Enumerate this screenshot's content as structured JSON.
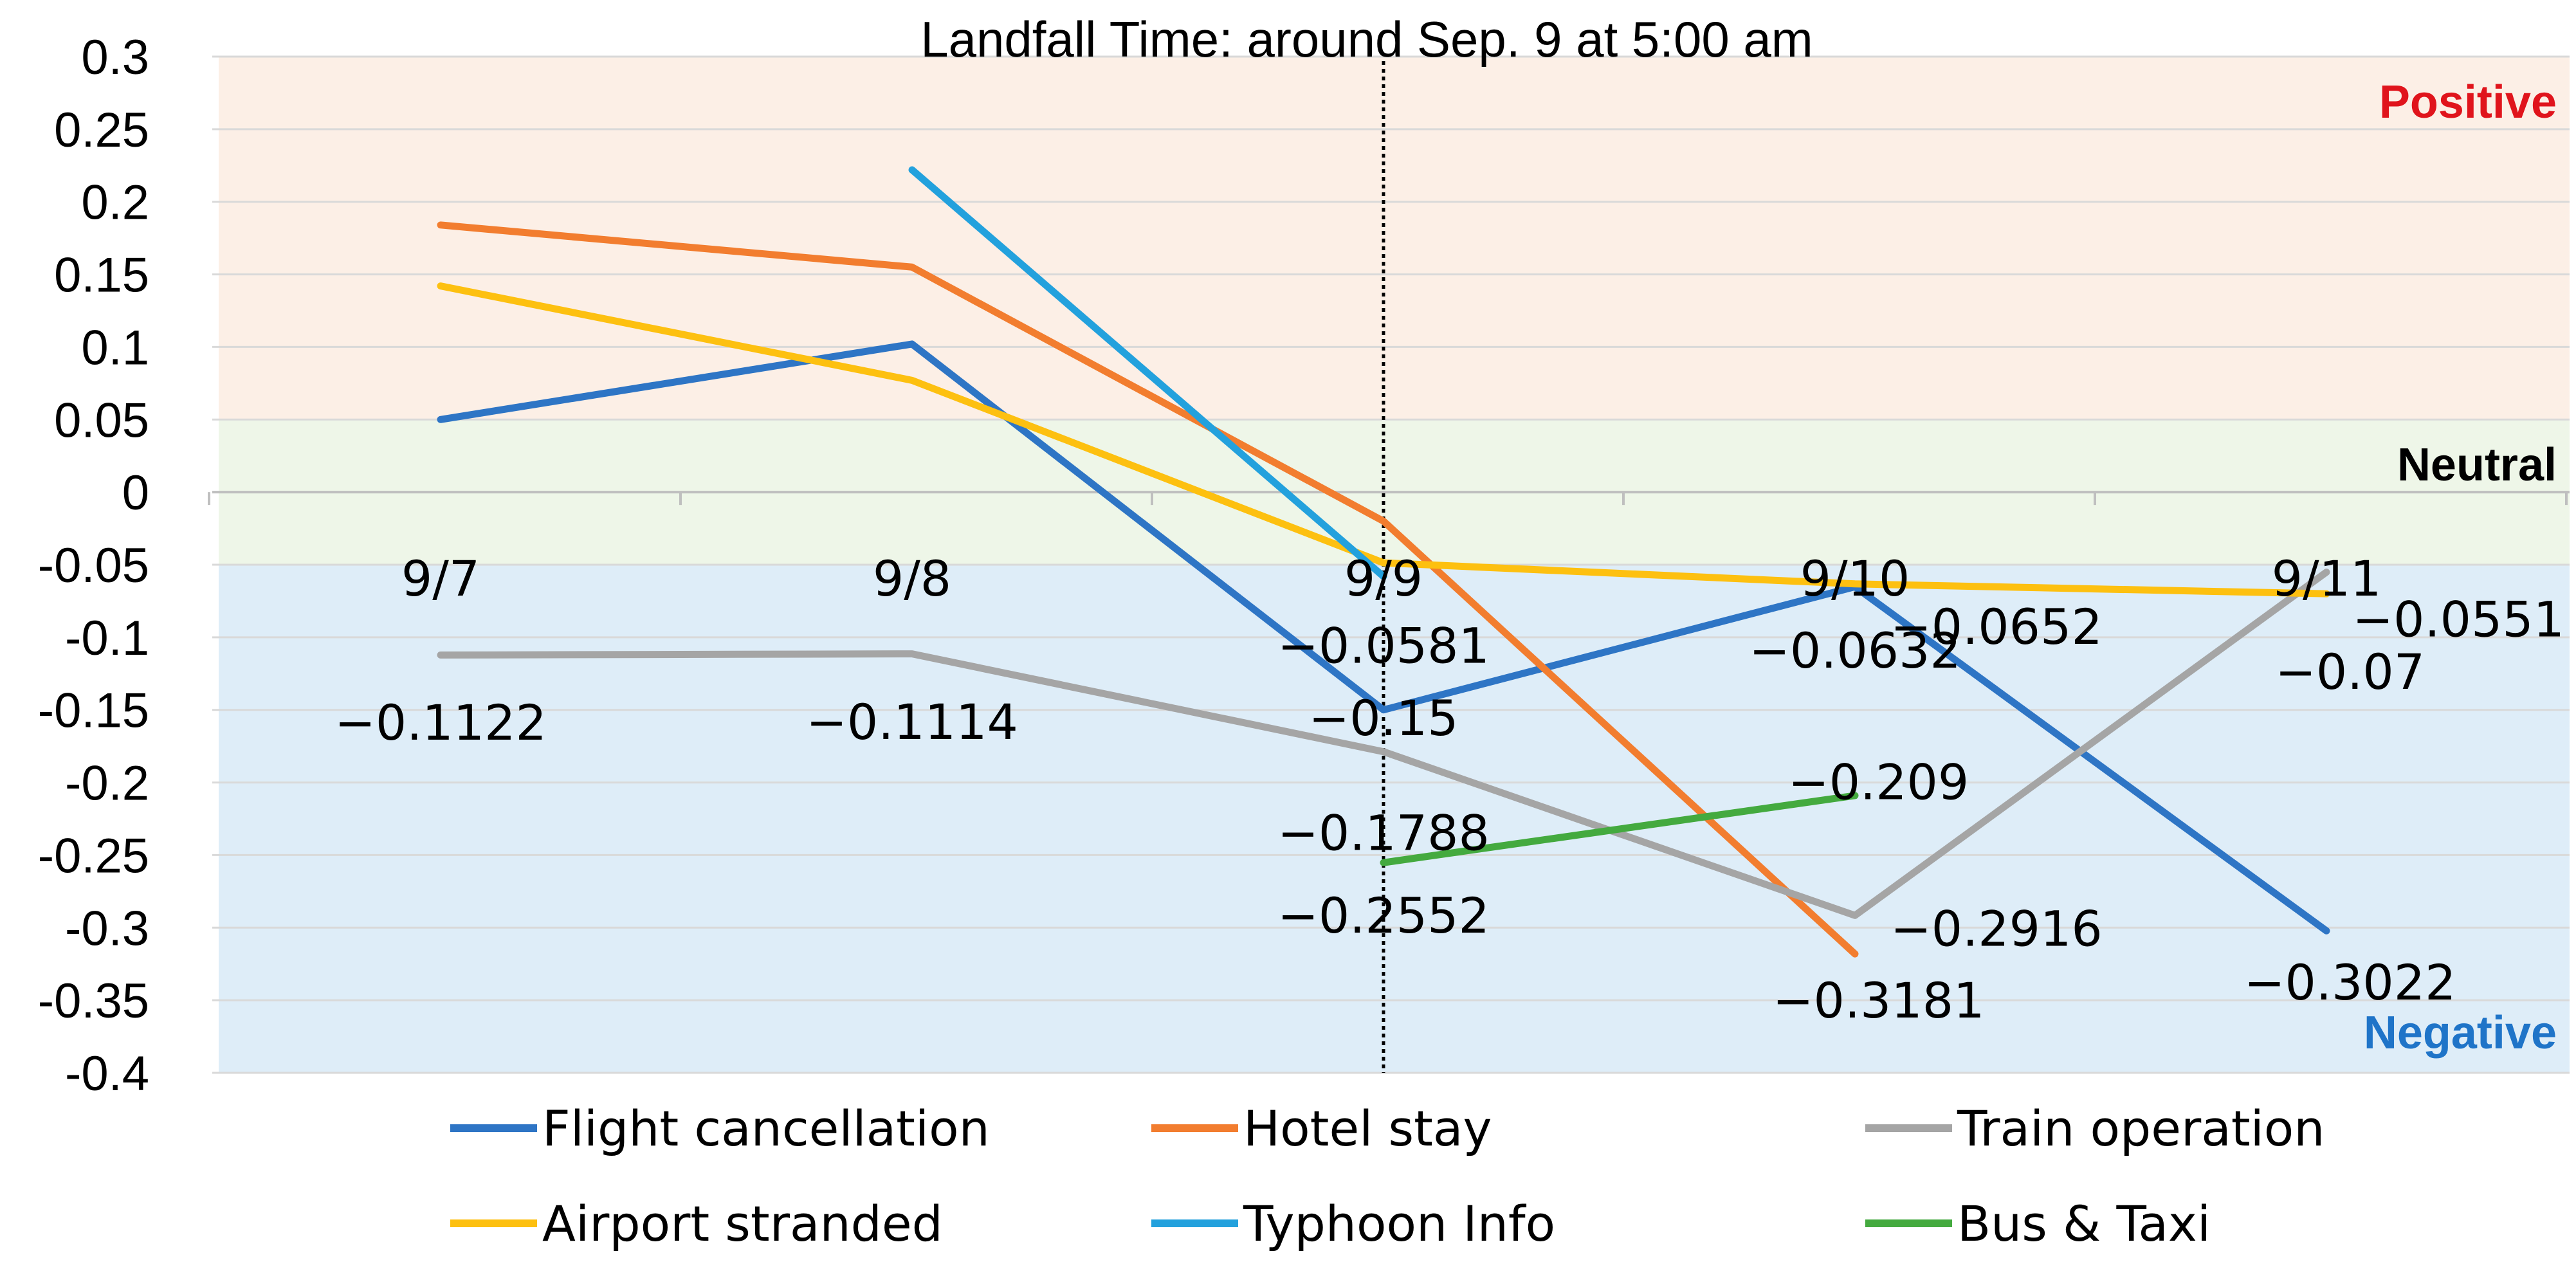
{
  "chart_data": {
    "type": "line",
    "title": "Landfall Time: around Sep. 9 at 5:00 am",
    "categories": [
      "9/7",
      "9/8",
      "9/9",
      "9/10",
      "9/11"
    ],
    "ylim": [
      -0.4,
      0.3
    ],
    "ytick_labels": [
      "0.3",
      "0.25",
      "0.2",
      "0.15",
      "0.1",
      "0.05",
      "0",
      "-0.05",
      "-0.1",
      "-0.15",
      "-0.2",
      "-0.25",
      "-0.3",
      "-0.35",
      "-0.4"
    ],
    "ytick_values": [
      0.3,
      0.25,
      0.2,
      0.15,
      0.1,
      0.05,
      0,
      -0.05,
      -0.1,
      -0.15,
      -0.2,
      -0.25,
      -0.3,
      -0.35,
      -0.4
    ],
    "zones": [
      {
        "label": "Positive",
        "from": 0.05,
        "to": 0.3,
        "fill": "#fcefe6",
        "text_color": "#e0141c"
      },
      {
        "label": "Neutral",
        "from": -0.05,
        "to": 0.05,
        "fill": "#eef6e8",
        "text_color": "#000000"
      },
      {
        "label": "Negative",
        "from": -0.4,
        "to": -0.05,
        "fill": "#deedf8",
        "text_color": "#1f74c8"
      }
    ],
    "landfall_category_index": 2,
    "series": [
      {
        "name": "Flight cancellation",
        "color": "#2e75c5",
        "values": [
          0.05,
          0.102,
          -0.15,
          -0.0652,
          -0.3022
        ]
      },
      {
        "name": "Hotel stay",
        "color": "#f27d2f",
        "values": [
          0.184,
          0.155,
          -0.02,
          -0.3181,
          null
        ]
      },
      {
        "name": "Train operation",
        "color": "#a5a5a5",
        "values": [
          -0.1122,
          -0.1114,
          -0.1788,
          -0.2916,
          -0.0551
        ]
      },
      {
        "name": "Airport stranded",
        "color": "#fdc010",
        "values": [
          0.142,
          0.077,
          -0.0487,
          -0.0632,
          -0.07
        ]
      },
      {
        "name": "Typhoon Info",
        "color": "#23a1dd",
        "values": [
          null,
          0.222,
          -0.0581,
          null,
          null
        ]
      },
      {
        "name": "Bus & Taxi",
        "color": "#44aa3f",
        "values": [
          null,
          null,
          -0.2552,
          -0.209,
          null
        ]
      }
    ],
    "data_labels": [
      {
        "text": "−0.1122",
        "cat": 0,
        "y": -0.1585
      },
      {
        "text": "−0.1114",
        "cat": 1,
        "y": -0.158
      },
      {
        "text": "−0.0581",
        "cat": 2,
        "y": -0.1055
      },
      {
        "text": "−0.15",
        "cat": 2,
        "y": -0.1555
      },
      {
        "text": "−0.1788",
        "cat": 2,
        "y": -0.2345
      },
      {
        "text": "−0.2552",
        "cat": 2,
        "y": -0.2915
      },
      {
        "text": "−0.0632",
        "cat": 3,
        "y": -0.109
      },
      {
        "text": "−0.0652",
        "cat": 3.3,
        "y": -0.0925
      },
      {
        "text": "−0.209",
        "cat": 3.05,
        "y": -0.1995
      },
      {
        "text": "−0.2916",
        "cat": 3.3,
        "y": -0.3005
      },
      {
        "text": "−0.3181",
        "cat": 3.05,
        "y": -0.35
      },
      {
        "text": "−0.0551",
        "cat": 4.28,
        "y": -0.0875
      },
      {
        "text": "−0.07",
        "cat": 4.05,
        "y": -0.1235
      },
      {
        "text": "−0.3022",
        "cat": 4.05,
        "y": -0.3375
      }
    ]
  }
}
